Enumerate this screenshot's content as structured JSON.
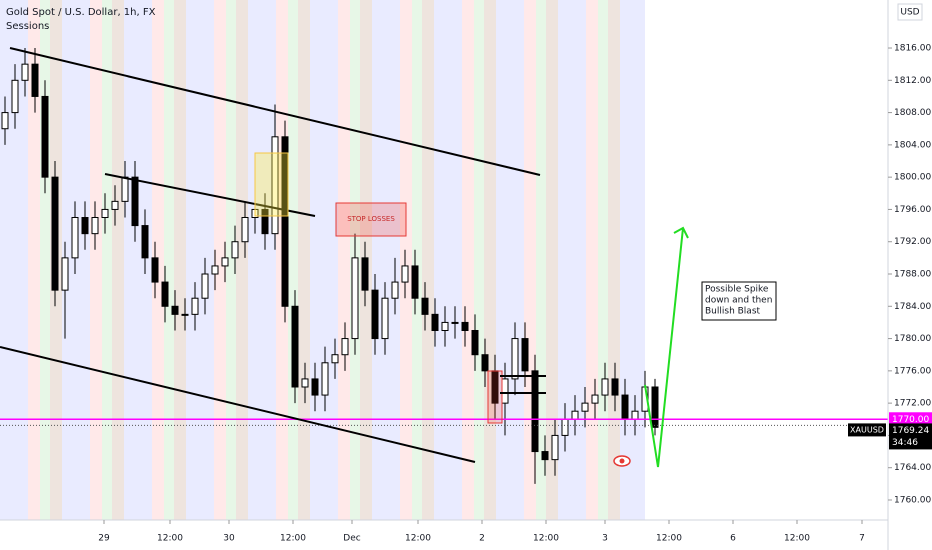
{
  "chart_data": {
    "type": "candlestick",
    "title": "Gold Spot / U.S. Dollar, 1h, FX",
    "indicator": "Sessions",
    "currency": "USD",
    "x": [
      0,
      1,
      2,
      3,
      4,
      5,
      6,
      7,
      8,
      9,
      10,
      11,
      12,
      13,
      14,
      15,
      16,
      17,
      18,
      19,
      20,
      21,
      22,
      23,
      24,
      25,
      26,
      27,
      28,
      29,
      30,
      31,
      32,
      33,
      34,
      35,
      36,
      37,
      38,
      39,
      40,
      41,
      42,
      43,
      44,
      45,
      46,
      47,
      48,
      49,
      50,
      51,
      52,
      53,
      54,
      55,
      56,
      57,
      58,
      59,
      60,
      61,
      62,
      63,
      64,
      65
    ],
    "open": [
      1806,
      1808,
      1812,
      1814,
      1810,
      1800,
      1786,
      1790,
      1795,
      1793,
      1795,
      1796,
      1797,
      1800,
      1794,
      1790,
      1787,
      1784,
      1783,
      1783,
      1785,
      1788,
      1789,
      1790,
      1792,
      1795,
      1796,
      1793,
      1805,
      1784,
      1774,
      1775,
      1773,
      1777,
      1778,
      1780,
      1790,
      1786,
      1780,
      1785,
      1787,
      1789,
      1785,
      1783,
      1781,
      1782,
      1782,
      1781,
      1778,
      1776,
      1772,
      1775,
      1780,
      1776,
      1766,
      1765,
      1768,
      1770,
      1771,
      1772,
      1773,
      1775,
      1773,
      1770,
      1771,
      1774
    ],
    "high": [
      1810,
      1814,
      1816,
      1816,
      1812,
      1802,
      1792,
      1797,
      1797,
      1797,
      1798,
      1799,
      1802,
      1802,
      1796,
      1792,
      1789,
      1786,
      1785,
      1787,
      1790,
      1791,
      1792,
      1794,
      1797,
      1800,
      1798,
      1809,
      1807,
      1786,
      1777,
      1777,
      1779,
      1780,
      1782,
      1793,
      1792,
      1788,
      1787,
      1790,
      1791,
      1791,
      1787,
      1785,
      1784,
      1784,
      1784,
      1783,
      1780,
      1778,
      1777,
      1782,
      1782,
      1778,
      1768,
      1770,
      1772,
      1773,
      1774,
      1775,
      1777,
      1777,
      1775,
      1773,
      1776,
      1775
    ],
    "low": [
      1804,
      1806,
      1810,
      1808,
      1798,
      1784,
      1780,
      1788,
      1791,
      1791,
      1793,
      1794,
      1795,
      1792,
      1788,
      1785,
      1782,
      1781,
      1781,
      1781,
      1783,
      1786,
      1787,
      1788,
      1790,
      1793,
      1791,
      1791,
      1782,
      1772,
      1772,
      1771,
      1771,
      1775,
      1776,
      1778,
      1784,
      1778,
      1778,
      1783,
      1785,
      1783,
      1781,
      1779,
      1779,
      1780,
      1779,
      1776,
      1774,
      1770,
      1768,
      1773,
      1774,
      1762,
      1763,
      1763,
      1766,
      1768,
      1769,
      1770,
      1771,
      1771,
      1768,
      1768,
      1769,
      1768
    ],
    "close": [
      1808,
      1812,
      1814,
      1810,
      1800,
      1786,
      1790,
      1795,
      1793,
      1795,
      1796,
      1797,
      1800,
      1794,
      1790,
      1787,
      1784,
      1783,
      1783,
      1785,
      1788,
      1789,
      1790,
      1792,
      1795,
      1796,
      1793,
      1805,
      1784,
      1774,
      1775,
      1773,
      1777,
      1778,
      1780,
      1790,
      1786,
      1780,
      1785,
      1787,
      1789,
      1785,
      1783,
      1781,
      1782,
      1782,
      1781,
      1778,
      1776,
      1772,
      1775,
      1780,
      1776,
      1766,
      1765,
      1768,
      1770,
      1771,
      1772,
      1773,
      1775,
      1773,
      1770,
      1771,
      1774,
      1769
    ],
    "xlim": [
      -0.5,
      88.3
    ],
    "xticks": [
      {
        "value": 9.9,
        "label": "29"
      },
      {
        "value": 16.5,
        "label": "12:00"
      },
      {
        "value": 22.4,
        "label": "30"
      },
      {
        "value": 28.8,
        "label": "12:00"
      },
      {
        "value": 34.7,
        "label": "Dec"
      },
      {
        "value": 41.3,
        "label": "12:00"
      },
      {
        "value": 47.7,
        "label": "2"
      },
      {
        "value": 54.1,
        "label": "12:00"
      },
      {
        "value": 60,
        "label": "3"
      },
      {
        "value": 66.4,
        "label": "12:00"
      },
      {
        "value": 72.8,
        "label": "6"
      },
      {
        "value": 79.2,
        "label": "12:00"
      },
      {
        "value": 85.7,
        "label": "7"
      }
    ],
    "ylim": [
      1757.52,
      1821.95
    ],
    "yticks": [
      {
        "value": 1760,
        "label": "1760.00"
      },
      {
        "value": 1764,
        "label": "1764.00"
      },
      {
        "value": 1768,
        "label": "1768.00"
      },
      {
        "value": 1772,
        "label": "1772.00"
      },
      {
        "value": 1776,
        "label": "1776.00"
      },
      {
        "value": 1780,
        "label": "1780.00"
      },
      {
        "value": 1784,
        "label": "1784.00"
      },
      {
        "value": 1788,
        "label": "1788.00"
      },
      {
        "value": 1792,
        "label": "1792.00"
      },
      {
        "value": 1796,
        "label": "1796.00"
      },
      {
        "value": 1800,
        "label": "1800.00"
      },
      {
        "value": 1804,
        "label": "1804.00"
      },
      {
        "value": 1808,
        "label": "1808.00"
      },
      {
        "value": 1812,
        "label": "1812.00"
      },
      {
        "value": 1816,
        "label": "1816.00"
      }
    ],
    "price_line": {
      "value": 1770,
      "label": "1770.00",
      "color": "#ff00ff"
    },
    "last_price": {
      "value": 1769.24,
      "label": "1769.24",
      "symbol": "XAUUSD",
      "countdown": "34:46"
    },
    "annotations": {
      "stop_losses": "STOP LOSSES",
      "note": [
        "Possible Spike",
        "down and then",
        "Bullish Blast"
      ]
    }
  }
}
